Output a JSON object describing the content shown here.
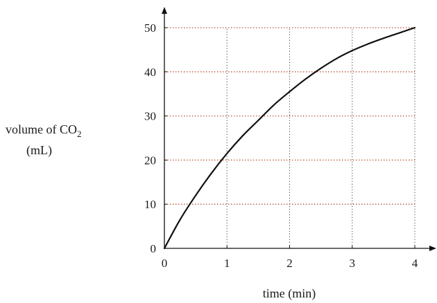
{
  "chart_data": {
    "type": "line",
    "xlabel": "time (min)",
    "ylabel_line1": "volume of CO",
    "ylabel_subscript": "2",
    "ylabel_line2": "(mL)",
    "xlim": [
      0,
      4
    ],
    "ylim": [
      0,
      50
    ],
    "x_ticks": [
      0,
      1,
      2,
      3,
      4
    ],
    "y_ticks": [
      0,
      10,
      20,
      30,
      40,
      50
    ],
    "grid": true,
    "series": [
      {
        "x": [
          0,
          0.25,
          0.5,
          0.75,
          1,
          1.25,
          1.5,
          1.75,
          2,
          2.25,
          2.5,
          2.75,
          3,
          3.25,
          3.5,
          3.75,
          4
        ],
        "y": [
          0,
          6.5,
          12,
          17,
          21.5,
          25.5,
          29,
          32.5,
          35.5,
          38.3,
          40.8,
          43,
          44.8,
          46.3,
          47.6,
          48.8,
          50
        ],
        "color": "#111111"
      }
    ],
    "colors": {
      "vertical_grid": "#555555",
      "horizontal_grid": "#b5482a",
      "axis": "#111111"
    }
  }
}
